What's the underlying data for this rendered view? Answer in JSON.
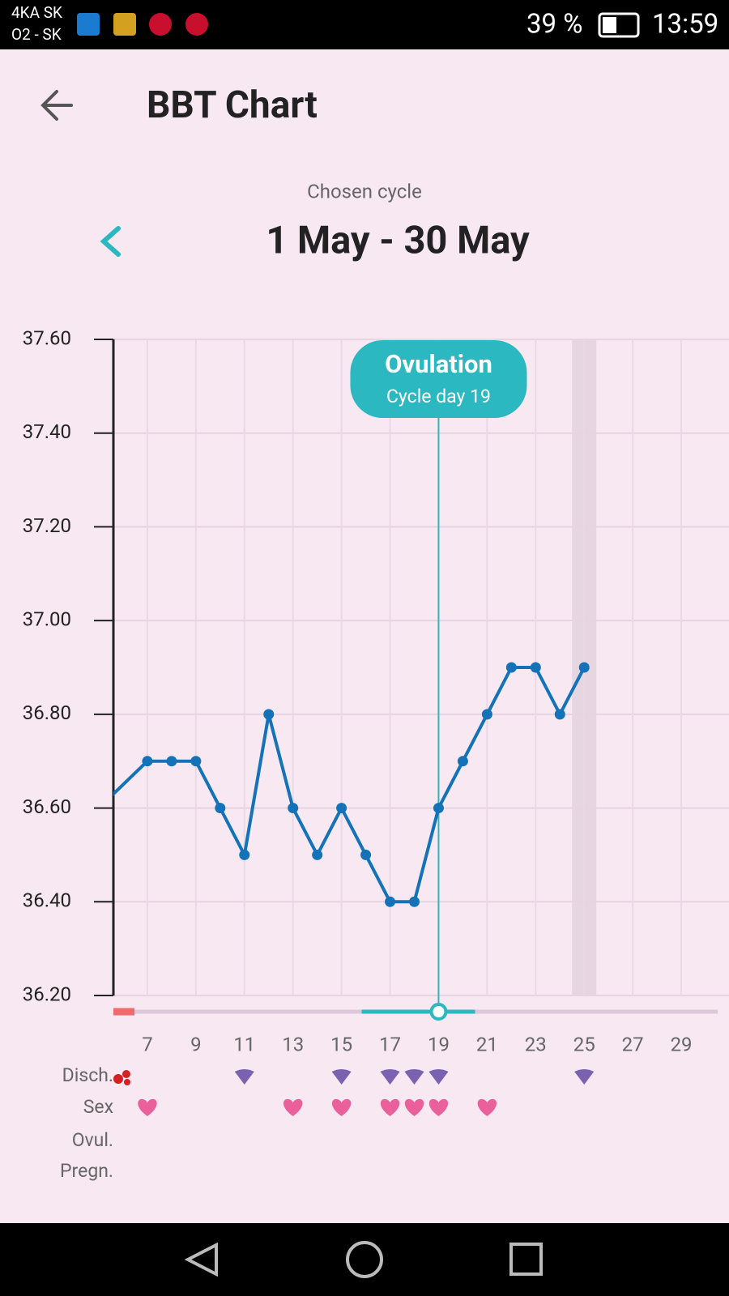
{
  "status_bar": {
    "carrier_1": "4KA SK",
    "carrier_2": "O2 - SK",
    "battery": "39 %",
    "time": "13:59"
  },
  "header": {
    "title": "BBT Chart"
  },
  "cycle": {
    "label": "Chosen cycle",
    "range": "1 May - 30 May"
  },
  "chart_data": {
    "type": "line",
    "x": [
      5,
      7,
      8,
      9,
      10,
      11,
      12,
      13,
      14,
      15,
      16,
      17,
      18,
      19,
      20,
      21,
      22,
      23,
      24,
      25
    ],
    "series": [
      {
        "color": "#1473b8",
        "values": [
          36.6,
          36.7,
          36.7,
          36.7,
          36.6,
          36.5,
          36.8,
          36.6,
          36.5,
          36.6,
          36.5,
          36.4,
          36.4,
          36.6,
          36.7,
          36.8,
          36.9,
          36.9,
          36.8,
          36.9
        ]
      }
    ],
    "xlim": [
      5.6,
      30.5
    ],
    "xticks": [
      7,
      9,
      11,
      13,
      15,
      17,
      19,
      21,
      23,
      25,
      27,
      29
    ],
    "ylim": [
      36.2,
      37.6
    ],
    "yticks": [
      {
        "value": 36.2,
        "label": "36.20"
      },
      {
        "value": 36.4,
        "label": "36.40"
      },
      {
        "value": 36.6,
        "label": "36.60"
      },
      {
        "value": 36.8,
        "label": "36.80"
      },
      {
        "value": 37.0,
        "label": "37.00"
      },
      {
        "value": 37.2,
        "label": "37.20"
      },
      {
        "value": 37.4,
        "label": "37.40"
      },
      {
        "value": 37.6,
        "label": "37.60"
      }
    ],
    "grid": true,
    "annotation": {
      "x": 19,
      "title": "Ovulation",
      "subtitle": "Cycle day 19",
      "color": "#2bb8c0"
    },
    "highlight_x": 25,
    "bleeding_days": [
      6
    ],
    "rows": [
      {
        "label": "Disch.",
        "days": [
          11,
          15,
          17,
          18,
          19,
          25
        ]
      },
      {
        "label": "Sex",
        "days": [
          7,
          13,
          15,
          17,
          18,
          19,
          21
        ]
      },
      {
        "label": "Ovul.",
        "days": []
      },
      {
        "label": "Pregn.",
        "days": []
      }
    ]
  }
}
